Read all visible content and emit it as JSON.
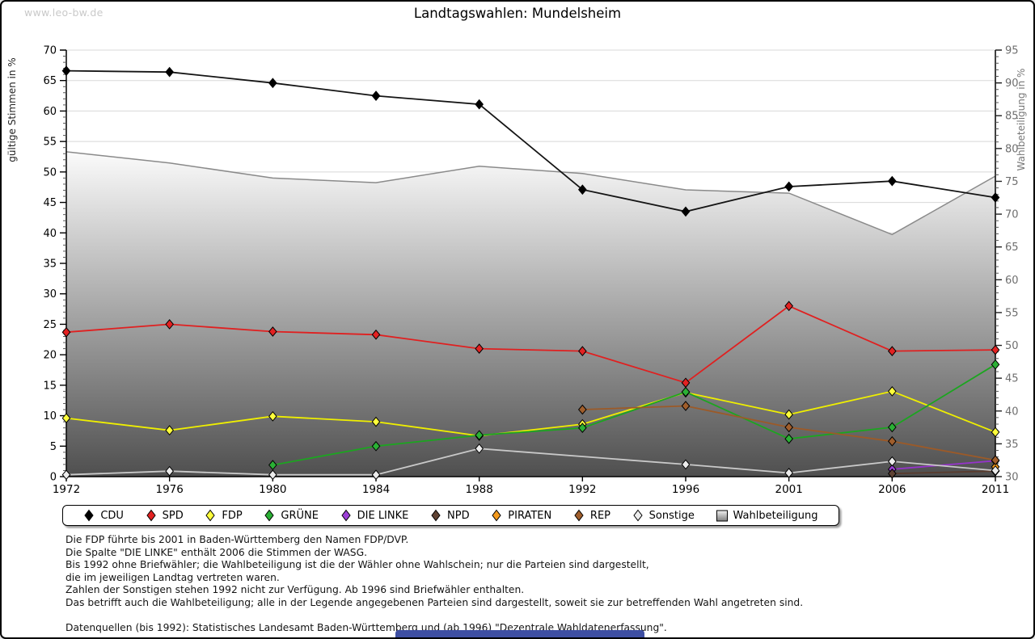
{
  "page": {
    "watermark": "www.leo-bw.de",
    "title": "Landtagswahlen: Mundelsheim"
  },
  "chart_data": {
    "type": "line",
    "title": "Landtagswahlen: Mundelsheim",
    "x": [
      1972,
      1976,
      1980,
      1984,
      1988,
      1992,
      1996,
      2001,
      2006,
      2011
    ],
    "axes": {
      "left": {
        "label": "gültige Stimmen in %",
        "min": 0,
        "max": 70,
        "tick_step": 5,
        "minor_tick_step": 1,
        "tick_color": "#000000",
        "label_color": "#222222"
      },
      "right": {
        "label": "Wahlbeteiligung in %",
        "min": 30,
        "max": 95,
        "tick_step": 5,
        "minor_tick_step": 1,
        "tick_color": "#6e6e6e",
        "label_color": "#777777"
      }
    },
    "grid": {
      "horizontal": true,
      "color": "#d8d8d8"
    },
    "legend_position": "bottom",
    "series": [
      {
        "name": "CDU",
        "type": "line",
        "axis": "left",
        "color": "#141414",
        "marker": "diamond",
        "marker_fill": "#000000",
        "values": [
          66.6,
          66.4,
          64.6,
          62.5,
          61.1,
          47.1,
          43.5,
          47.6,
          48.5,
          45.8
        ]
      },
      {
        "name": "SPD",
        "type": "line",
        "axis": "left",
        "color": "#e02020",
        "marker": "diamond",
        "marker_fill": "#e32222",
        "values": [
          23.7,
          25.0,
          23.8,
          23.3,
          21.0,
          20.6,
          15.4,
          28.0,
          20.6,
          20.8
        ]
      },
      {
        "name": "FDP",
        "type": "line",
        "axis": "left",
        "color": "#efef00",
        "marker": "diamond",
        "marker_fill": "#ffff3c",
        "values": [
          9.6,
          7.6,
          9.9,
          9.0,
          6.7,
          8.6,
          13.8,
          10.2,
          14.0,
          7.3
        ]
      },
      {
        "name": "GRÜNE",
        "type": "line",
        "axis": "left",
        "color": "#1ca520",
        "marker": "diamond",
        "marker_fill": "#2bb035",
        "values": [
          null,
          null,
          1.9,
          5.0,
          6.8,
          8.0,
          13.9,
          6.2,
          8.1,
          18.4
        ]
      },
      {
        "name": "DIE LINKE",
        "type": "line",
        "axis": "left",
        "color": "#9633cc",
        "marker": "diamond",
        "marker_fill": "#9c3fd6",
        "values": [
          null,
          null,
          null,
          null,
          null,
          null,
          null,
          null,
          1.2,
          2.6
        ]
      },
      {
        "name": "NPD",
        "type": "line",
        "axis": "left",
        "color": "#5a3c2e",
        "marker": "diamond",
        "marker_fill": "#5f4233",
        "values": [
          null,
          null,
          null,
          null,
          null,
          null,
          null,
          null,
          0.5,
          0.9
        ]
      },
      {
        "name": "PIRATEN",
        "type": "line",
        "axis": "left",
        "color": "#ef8d18",
        "marker": "diamond",
        "marker_fill": "#f49a1c",
        "values": [
          null,
          null,
          null,
          null,
          null,
          null,
          null,
          null,
          null,
          1.6
        ]
      },
      {
        "name": "REP",
        "type": "line",
        "axis": "left",
        "color": "#9c5a28",
        "marker": "diamond",
        "marker_fill": "#a05e2c",
        "values": [
          null,
          null,
          null,
          null,
          null,
          11.0,
          11.6,
          8.1,
          5.8,
          2.7
        ]
      },
      {
        "name": "Sonstige",
        "type": "line",
        "axis": "left",
        "color": "#c9c9c9",
        "marker": "diamond",
        "marker_fill": "#ececec",
        "values": [
          0.3,
          0.9,
          0.3,
          0.3,
          4.6,
          null,
          2.0,
          0.6,
          2.5,
          1.0
        ]
      },
      {
        "name": "Wahlbeteiligung",
        "type": "area",
        "axis": "right",
        "color": "#8a8a8a",
        "marker": "gradient-square",
        "fill_gradient": [
          "#fbfbfb",
          "#4f4f4f"
        ],
        "values": [
          79.5,
          77.8,
          75.5,
          74.8,
          77.3,
          76.2,
          73.7,
          73.2,
          66.9,
          75.8
        ]
      }
    ]
  },
  "footnotes": {
    "notes": [
      "Die FDP führte bis 2001 in Baden-Württemberg den Namen FDP/DVP.",
      "Die Spalte \"DIE LINKE\" enthält 2006 die Stimmen der WASG.",
      "Bis 1992 ohne Briefwähler; die Wahlbeteiligung ist die der Wähler ohne Wahlschein; nur die Parteien sind dargestellt,",
      "die im jeweiligen Landtag vertreten waren.",
      "Zahlen der Sonstigen stehen 1992 nicht zur Verfügung. Ab 1996 sind Briefwähler enthalten.",
      "Das betrifft auch die Wahlbeteiligung; alle in der Legende angegebenen Parteien sind dargestellt, soweit sie zur betreffenden Wahl angetreten sind."
    ],
    "source": "Datenquellen (bis 1992): Statistisches Landesamt Baden-Württemberg und (ab 1996) \"Dezentrale Wahldatenerfassung\"."
  }
}
